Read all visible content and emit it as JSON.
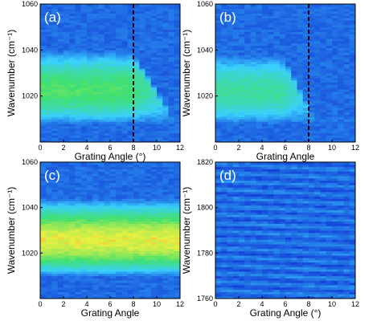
{
  "chart_data": [
    {
      "type": "heatmap",
      "panel_label": "(a)",
      "xlabel": "Grating Angle (°)",
      "ylabel": "Wavenumber (cm⁻¹)",
      "xlim": [
        0,
        12
      ],
      "ylim": [
        1000,
        1060
      ],
      "xticks": [
        "0",
        "2",
        "4",
        "6",
        "8",
        "10",
        "12"
      ],
      "yticks": [
        "1020",
        "1040",
        "1060"
      ],
      "ytick_values": [
        1020,
        1040,
        1060
      ],
      "dashed_line_x": 8,
      "band": {
        "low": 1008,
        "high": 1040,
        "center": 1027,
        "cutoff_start_angle": 7.5,
        "cutoff_end_angle": 11.5,
        "peak_intensity": 0.7
      }
    },
    {
      "type": "heatmap",
      "panel_label": "(b)",
      "xlabel": "Grating Angle",
      "ylabel": "Wavenumber (cm⁻¹)",
      "xlim": [
        0,
        12
      ],
      "ylim": [
        1000,
        1060
      ],
      "xticks": [
        "0",
        "2",
        "4",
        "6",
        "8",
        "10",
        "12"
      ],
      "yticks": [
        "1020",
        "1040",
        "1060"
      ],
      "ytick_values": [
        1020,
        1040,
        1060
      ],
      "dashed_line_x": 8,
      "band": {
        "low": 1008,
        "high": 1038,
        "center": 1026,
        "cutoff_start_angle": 5.5,
        "cutoff_end_angle": 8.5,
        "peak_intensity": 0.55
      }
    },
    {
      "type": "heatmap",
      "panel_label": "(c)",
      "xlabel": "Grating Angle",
      "ylabel": "Wavenumber (cm⁻¹)",
      "xlim": [
        0,
        12
      ],
      "ylim": [
        1000,
        1060
      ],
      "xticks": [
        "0",
        "2",
        "4",
        "6",
        "8",
        "10",
        "12"
      ],
      "yticks": [
        "1020",
        "1040",
        "1060"
      ],
      "ytick_values": [
        1020,
        1040,
        1060
      ],
      "dashed_line_x": null,
      "band": {
        "low": 1010,
        "high": 1044,
        "center": 1029,
        "cutoff_start_angle": 99,
        "cutoff_end_angle": 100,
        "peak_intensity": 1.0
      }
    },
    {
      "type": "heatmap",
      "panel_label": "(d)",
      "xlabel": "Grating Angle (°)",
      "ylabel": "Wavenumber (cm⁻¹)",
      "xlim": [
        0,
        12
      ],
      "ylim": [
        1760,
        1820
      ],
      "xticks": [
        "0",
        "2",
        "4",
        "6",
        "8",
        "10",
        "12"
      ],
      "yticks": [
        "1760",
        "1780",
        "1800",
        "1820"
      ],
      "ytick_values": [
        1760,
        1780,
        1800,
        1820
      ],
      "dashed_line_x": null,
      "band": null
    }
  ],
  "colors": {
    "background_blue": "#1440d8",
    "band_cyan": "#3ad0ff",
    "band_green": "#40e070",
    "band_yellow": "#e8f040",
    "band_red": "#ff5030",
    "dashed_line": "#000000",
    "panel_label": "#ffffff"
  }
}
